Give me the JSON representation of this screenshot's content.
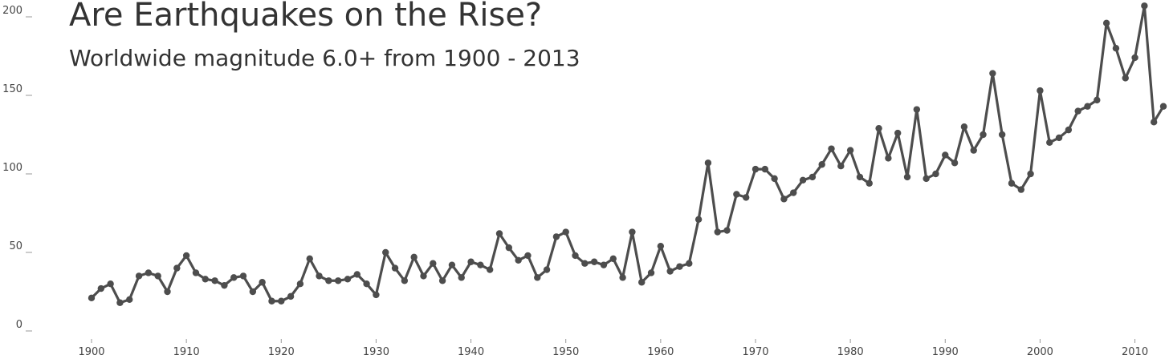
{
  "chart_data": {
    "type": "line",
    "title": "Are Earthquakes on the Rise?",
    "subtitle": "Worldwide magnitude 6.0+ from 1900 - 2013",
    "xlabel": "",
    "ylabel": "",
    "xlim": [
      1900,
      2013
    ],
    "ylim": [
      0,
      200
    ],
    "xticks": [
      1900,
      1910,
      1920,
      1930,
      1940,
      1950,
      1960,
      1970,
      1980,
      1990,
      2000,
      2010
    ],
    "yticks": [
      0,
      50,
      100,
      150,
      200
    ],
    "grid": false,
    "line_color": "#4d4d4d",
    "x": [
      1900,
      1901,
      1902,
      1903,
      1904,
      1905,
      1906,
      1907,
      1908,
      1909,
      1910,
      1911,
      1912,
      1913,
      1914,
      1915,
      1916,
      1917,
      1918,
      1919,
      1920,
      1921,
      1922,
      1923,
      1924,
      1925,
      1926,
      1927,
      1928,
      1929,
      1930,
      1931,
      1932,
      1933,
      1934,
      1935,
      1936,
      1937,
      1938,
      1939,
      1940,
      1941,
      1942,
      1943,
      1944,
      1945,
      1946,
      1947,
      1948,
      1949,
      1950,
      1951,
      1952,
      1953,
      1954,
      1955,
      1956,
      1957,
      1958,
      1959,
      1960,
      1961,
      1962,
      1963,
      1964,
      1965,
      1966,
      1967,
      1968,
      1969,
      1970,
      1971,
      1972,
      1973,
      1974,
      1975,
      1976,
      1977,
      1978,
      1979,
      1980,
      1981,
      1982,
      1983,
      1984,
      1985,
      1986,
      1987,
      1988,
      1989,
      1990,
      1991,
      1992,
      1993,
      1994,
      1995,
      1996,
      1997,
      1998,
      1999,
      2000,
      2001,
      2002,
      2003,
      2004,
      2005,
      2006,
      2007,
      2008,
      2009,
      2010,
      2011,
      2012,
      2013
    ],
    "values": [
      21,
      27,
      30,
      18,
      20,
      35,
      37,
      35,
      25,
      40,
      48,
      37,
      33,
      32,
      29,
      34,
      35,
      25,
      31,
      19,
      19,
      22,
      30,
      46,
      35,
      32,
      32,
      33,
      36,
      30,
      23,
      50,
      40,
      32,
      47,
      35,
      43,
      32,
      42,
      34,
      44,
      42,
      39,
      62,
      53,
      45,
      48,
      34,
      39,
      60,
      63,
      48,
      43,
      44,
      42,
      46,
      34,
      63,
      31,
      37,
      54,
      38,
      41,
      43,
      71,
      107,
      63,
      64,
      87,
      85,
      103,
      103,
      97,
      84,
      88,
      96,
      98,
      106,
      116,
      105,
      115,
      98,
      94,
      129,
      110,
      126,
      98,
      141,
      97,
      100,
      112,
      107,
      130,
      115,
      125,
      164,
      125,
      94,
      90,
      100,
      153,
      120,
      123,
      128,
      140,
      143,
      147,
      196,
      180,
      161,
      174,
      207,
      133,
      143
    ]
  }
}
